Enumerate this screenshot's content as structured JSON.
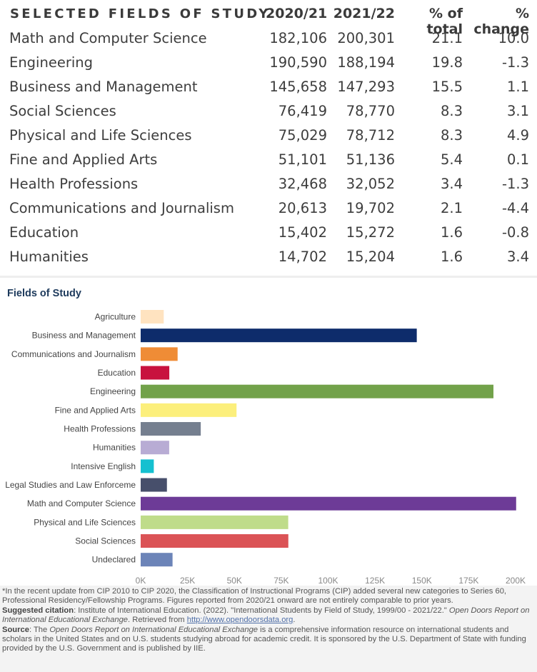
{
  "table": {
    "headers": {
      "field": "SELECTED FIELDS OF STUDY",
      "y2021": "2020/21",
      "y2122": "2021/22",
      "pct_total": "% of total",
      "pct_change": "% change"
    },
    "rows": [
      {
        "field": "Math and Computer Science",
        "y2021": "182,106",
        "y2122": "200,301",
        "pct_total": "21.1",
        "pct_change": "10.0"
      },
      {
        "field": "Engineering",
        "y2021": "190,590",
        "y2122": "188,194",
        "pct_total": "19.8",
        "pct_change": "-1.3"
      },
      {
        "field": "Business and Management",
        "y2021": "145,658",
        "y2122": "147,293",
        "pct_total": "15.5",
        "pct_change": "1.1"
      },
      {
        "field": "Social Sciences",
        "y2021": "76,419",
        "y2122": "78,770",
        "pct_total": "8.3",
        "pct_change": "3.1"
      },
      {
        "field": "Physical and Life Sciences",
        "y2021": "75,029",
        "y2122": "78,712",
        "pct_total": "8.3",
        "pct_change": "4.9"
      },
      {
        "field": "Fine and Applied Arts",
        "y2021": "51,101",
        "y2122": "51,136",
        "pct_total": "5.4",
        "pct_change": "0.1"
      },
      {
        "field": "Health Professions",
        "y2021": "32,468",
        "y2122": "32,052",
        "pct_total": "3.4",
        "pct_change": "-1.3"
      },
      {
        "field": "Communications and Journalism",
        "y2021": "20,613",
        "y2122": "19,702",
        "pct_total": "2.1",
        "pct_change": "-4.4"
      },
      {
        "field": "Education",
        "y2021": "15,402",
        "y2122": "15,272",
        "pct_total": "1.6",
        "pct_change": "-0.8"
      },
      {
        "field": "Humanities",
        "y2021": "14,702",
        "y2122": "15,204",
        "pct_total": "1.6",
        "pct_change": "3.4"
      }
    ]
  },
  "chart_data": {
    "type": "bar",
    "orientation": "horizontal",
    "title": "Fields of Study",
    "xlabel": "",
    "ylabel": "",
    "xlim": [
      0,
      200000
    ],
    "xticks": [
      0,
      25000,
      50000,
      75000,
      100000,
      125000,
      150000,
      175000,
      200000
    ],
    "xtick_labels": [
      "0K",
      "25K",
      "50K",
      "75K",
      "100K",
      "125K",
      "150K",
      "175K",
      "200K"
    ],
    "grid": false,
    "categories": [
      "Agriculture",
      "Business and Management",
      "Communications and Journalism",
      "Education",
      "Engineering",
      "Fine and Applied Arts",
      "Health Professions",
      "Humanities",
      "Intensive English",
      "Legal Studies and Law Enforceme",
      "Math and Computer Science",
      "Physical and Life Sciences",
      "Social Sciences",
      "Undeclared"
    ],
    "values": [
      12300,
      147293,
      19702,
      15272,
      188194,
      51136,
      32052,
      15204,
      7000,
      14000,
      200301,
      78712,
      78770,
      17000
    ],
    "colors": [
      "#ffe3c0",
      "#0e2c6b",
      "#ef8c36",
      "#c8123e",
      "#72a24a",
      "#fcef7c",
      "#757f8f",
      "#b8acd4",
      "#15c0d0",
      "#474f6b",
      "#6d3b97",
      "#bfdc8a",
      "#db5356",
      "#6c84b8"
    ]
  },
  "footnote": {
    "line1": "*In the recent update from CIP 2010 to CIP 2020, the Classification of Instructional Programs (CIP) added several new categories to Series 60, Professional Residency/Fellowship Programs. Figures reported from 2020/21 onward are not entirely comparable to prior years.",
    "citation_label": "Suggested citation",
    "citation_text": ": Institute of International Education. (2022). \"International Students by Field of Study, 1999/00 - 2021/22.\" ",
    "citation_italic": "Open Doors Report on International Educational Exchange",
    "citation_retrieved": ". Retrieved from ",
    "citation_link": "http://www.opendoorsdata.org",
    "citation_end": ".",
    "source_label": "Source",
    "source_pre": ": The ",
    "source_italic": "Open Doors Report on International Educational Exchange",
    "source_text": " is a comprehensive information resource on international students and scholars in the United States and on U.S. students studying abroad for academic credit. It is sponsored by the U.S. Department of State with funding provided by the U.S. Government and is published by IIE."
  }
}
